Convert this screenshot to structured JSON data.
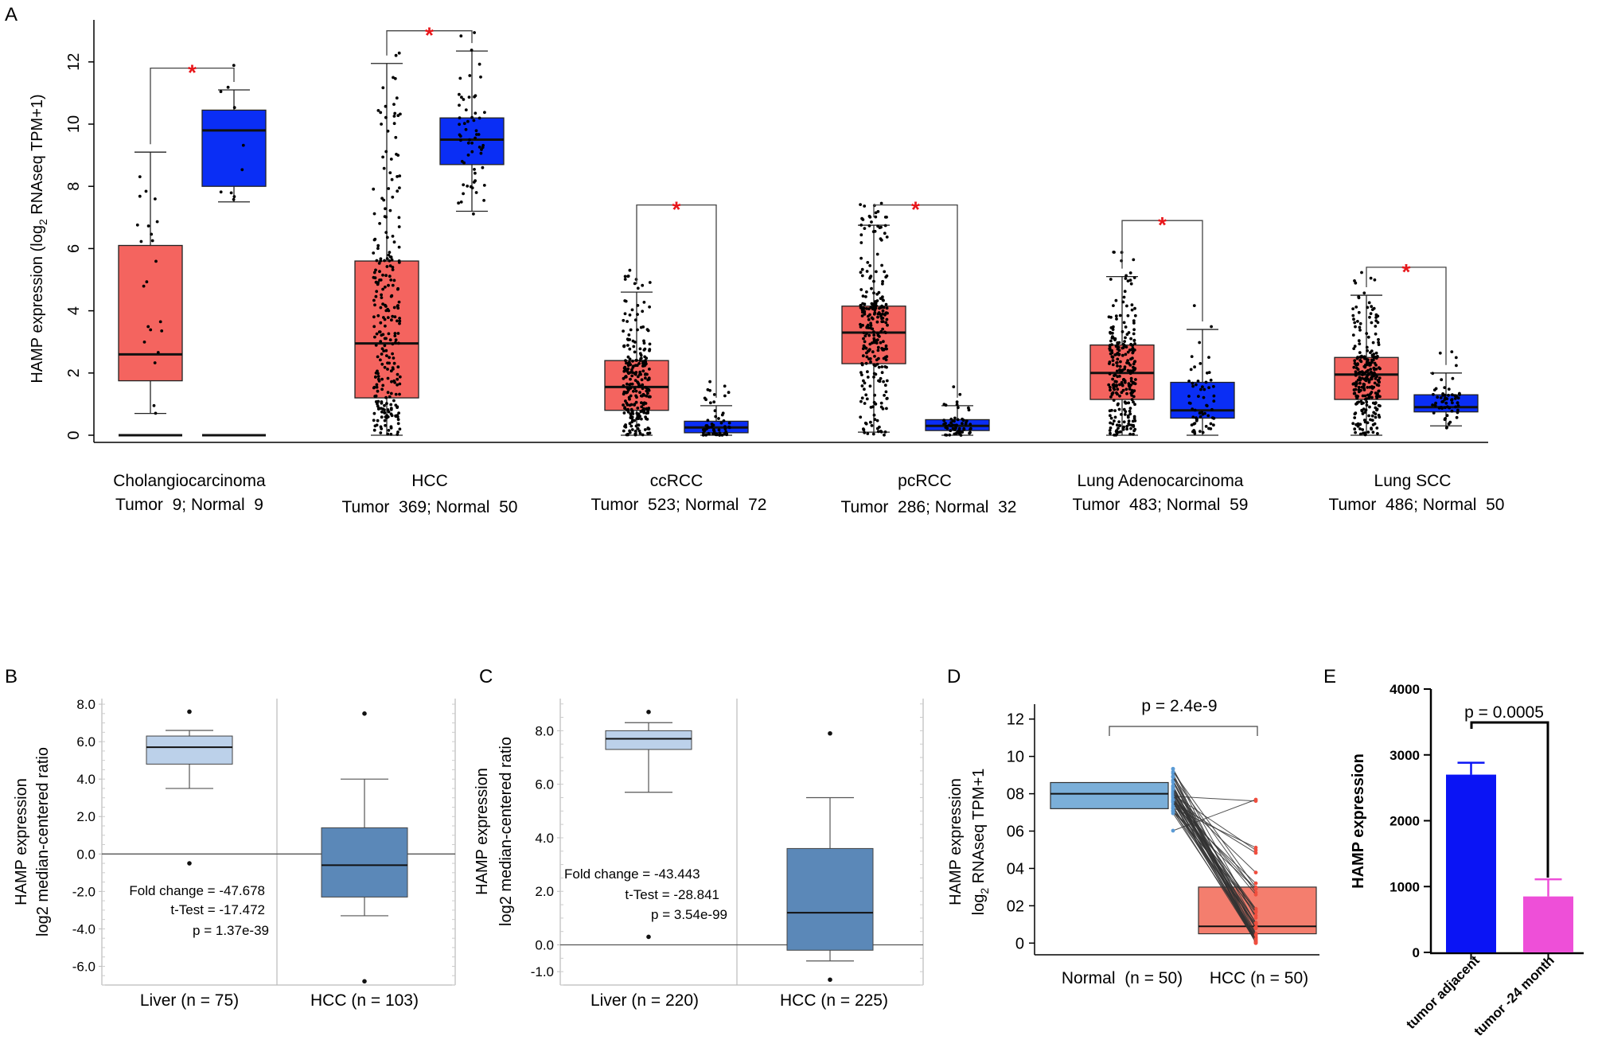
{
  "chart_data": [
    {
      "panel": "A",
      "type": "box",
      "ylabel_parts": [
        "HAMP expression (log",
        "2",
        " RNAseq TPM+1)"
      ],
      "ylim": [
        0,
        13
      ],
      "yticks": [
        0,
        2,
        4,
        6,
        8,
        10,
        12
      ],
      "significance_marker": "*",
      "colors": {
        "tumor": "#f4645f",
        "normal": "#0a2ef5"
      },
      "groups": [
        {
          "name": "Cholangiocarcinoma",
          "counts": "Tumor  9; Normal  9",
          "tumor": {
            "whisker_low": 0.7,
            "q1": 1.75,
            "median": 2.6,
            "q3": 6.1,
            "whisker_high": 9.1
          },
          "normal": {
            "whisker_low": 7.5,
            "q1": 8.0,
            "median": 9.8,
            "q3": 10.45,
            "whisker_high": 11.1
          },
          "tumor_zero_line": true,
          "normal_zero_line": true,
          "bracket_y": 11.8
        },
        {
          "name": "HCC",
          "counts": "Tumor  369; Normal  50",
          "tumor": {
            "whisker_low": 0,
            "q1": 1.2,
            "median": 2.95,
            "q3": 5.6,
            "whisker_high": 11.95
          },
          "normal": {
            "whisker_low": 7.2,
            "q1": 8.7,
            "median": 9.5,
            "q3": 10.2,
            "whisker_high": 12.35
          },
          "bracket_y": 13.0
        },
        {
          "name": "ccRCC",
          "counts": "Tumor  523; Normal  72",
          "tumor": {
            "whisker_low": 0,
            "q1": 0.8,
            "median": 1.55,
            "q3": 2.4,
            "whisker_high": 4.6
          },
          "normal": {
            "whisker_low": 0,
            "q1": 0.08,
            "median": 0.25,
            "q3": 0.45,
            "whisker_high": 0.95
          },
          "bracket_y": 7.4
        },
        {
          "name": "pcRCC",
          "counts": "Tumor  286; Normal  32",
          "tumor": {
            "whisker_low": 0.1,
            "q1": 2.3,
            "median": 3.3,
            "q3": 4.15,
            "whisker_high": 6.75
          },
          "normal": {
            "whisker_low": 0,
            "q1": 0.15,
            "median": 0.3,
            "q3": 0.5,
            "whisker_high": 0.95
          },
          "bracket_y": 7.4
        },
        {
          "name": "Lung Adenocarcinoma",
          "counts": "Tumor  483; Normal  59",
          "tumor": {
            "whisker_low": 0,
            "q1": 1.15,
            "median": 2.0,
            "q3": 2.9,
            "whisker_high": 5.1
          },
          "normal": {
            "whisker_low": 0,
            "q1": 0.55,
            "median": 0.8,
            "q3": 1.7,
            "whisker_high": 3.4
          },
          "bracket_y": 6.9
        },
        {
          "name": "Lung SCC",
          "counts": "Tumor  486; Normal  50",
          "tumor": {
            "whisker_low": 0,
            "q1": 1.15,
            "median": 1.95,
            "q3": 2.5,
            "whisker_high": 4.5
          },
          "normal": {
            "whisker_low": 0.3,
            "q1": 0.75,
            "median": 0.9,
            "q3": 1.3,
            "whisker_high": 2.0
          },
          "bracket_y": 5.4
        }
      ]
    },
    {
      "panel": "B",
      "type": "box",
      "ylabel_line1": "HAMP expression",
      "ylabel_line2": "log2 median-centered ratio",
      "ylim": [
        -7.0,
        8.3
      ],
      "yticks": [
        "-6.0",
        "-4.0",
        "-2.0",
        "0.0",
        "2.0",
        "4.0",
        "6.0",
        "8.0"
      ],
      "categories": [
        "Liver (n = 75)",
        "HCC (n = 103)"
      ],
      "boxes": [
        {
          "whisker_low": 3.5,
          "q1": 4.8,
          "median": 5.7,
          "q3": 6.3,
          "whisker_high": 6.6,
          "outliers": [
            7.6,
            -0.5
          ],
          "color": "#bcd1ea"
        },
        {
          "whisker_low": -3.3,
          "q1": -2.3,
          "median": -0.6,
          "q3": 1.4,
          "whisker_high": 4.0,
          "outliers": [
            7.5,
            -6.8
          ],
          "color": "#5b88b8"
        }
      ],
      "stats": [
        "Fold change = -47.678",
        "t-Test = -17.472",
        "p = 1.37e-39"
      ]
    },
    {
      "panel": "C",
      "type": "box",
      "ylabel_line1": "HAMP expression",
      "ylabel_line2": "log2 median-centered ratio",
      "ylim": [
        -1.5,
        9.2
      ],
      "yticks": [
        "-1.0",
        "0.0",
        "2.0",
        "4.0",
        "6.0",
        "8.0"
      ],
      "categories": [
        "Liver (n = 220)",
        "HCC (n = 225)"
      ],
      "boxes": [
        {
          "whisker_low": 5.7,
          "q1": 7.3,
          "median": 7.7,
          "q3": 8.0,
          "whisker_high": 8.3,
          "outliers": [
            8.7,
            0.3
          ],
          "color": "#bcd1ea"
        },
        {
          "whisker_low": -0.6,
          "q1": -0.2,
          "median": 1.2,
          "q3": 3.6,
          "whisker_high": 5.5,
          "outliers": [
            7.9,
            -1.3
          ],
          "color": "#5b88b8"
        }
      ],
      "stats": [
        "Fold change = -43.443",
        "t-Test = -28.841",
        "p = 3.54e-99"
      ]
    },
    {
      "panel": "D",
      "type": "paired-box",
      "ylabel_line1": "HAMP expression",
      "ylabel_line2_parts": [
        "log",
        "2",
        " RNAseq TPM+1"
      ],
      "ylim": [
        -0.2,
        12.5
      ],
      "yticks": [
        "0",
        "02",
        "04",
        "06",
        "08",
        "10",
        "12"
      ],
      "categories": [
        "Normal  (n = 50)",
        "HCC (n = 50)"
      ],
      "pvalue": "p = 2.4e-9",
      "boxes": [
        {
          "q1": 7.2,
          "median": 8.0,
          "q3": 8.6,
          "color": "#7bafd9"
        },
        {
          "q1": 0.5,
          "median": 0.9,
          "q3": 3.0,
          "color": "#f47e6e"
        }
      ]
    },
    {
      "panel": "E",
      "type": "bar",
      "ylabel": "HAMP expression",
      "ylim": [
        0,
        4000
      ],
      "yticks": [
        0,
        1000,
        2000,
        3000,
        4000
      ],
      "categories": [
        "tumor adjacent",
        "tumor -24 month"
      ],
      "values": [
        2700,
        850
      ],
      "errors": [
        180,
        260
      ],
      "colors": [
        "#0a14f5",
        "#ee4fd8"
      ],
      "pvalue": "p = 0.0005"
    }
  ],
  "panel_labels": [
    "A",
    "B",
    "C",
    "D",
    "E"
  ]
}
